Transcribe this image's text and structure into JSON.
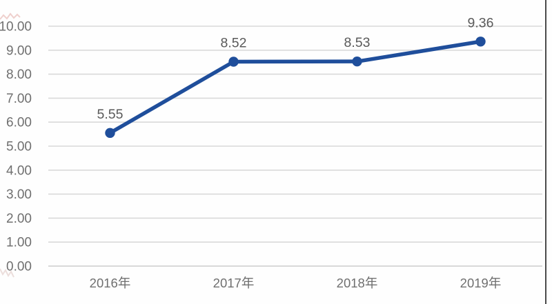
{
  "chart_data": {
    "type": "line",
    "title": "",
    "xlabel": "",
    "ylabel": "",
    "categories": [
      "2016年",
      "2017年",
      "2018年",
      "2019年"
    ],
    "series": [
      {
        "name": "",
        "values": [
          5.55,
          8.52,
          8.53,
          9.36
        ]
      }
    ],
    "data_labels": [
      "5.55",
      "8.52",
      "8.53",
      "9.36"
    ],
    "y_ticks": [
      "10.00",
      "9.00",
      "8.00",
      "7.00",
      "6.00",
      "5.00",
      "4.00",
      "3.00",
      "2.00",
      "1.00",
      "0.00"
    ],
    "ylim": [
      0,
      10
    ],
    "grid": "horizontal-only",
    "legend_position": "none",
    "colors": {
      "line": "#1f4e9b",
      "marker": "#1f4e9b",
      "gridline": "#d9d9d9",
      "baseline": "#cccccc",
      "axis_text": "#6f6f6f",
      "data_label_text": "#595959",
      "background": "#fefefe"
    }
  },
  "decorations": {
    "right_edge_color": "#4a4a4a",
    "torn_edge_top_color": "#e2aaa4",
    "torn_edge_bottom_color": "#d8b9b4"
  }
}
